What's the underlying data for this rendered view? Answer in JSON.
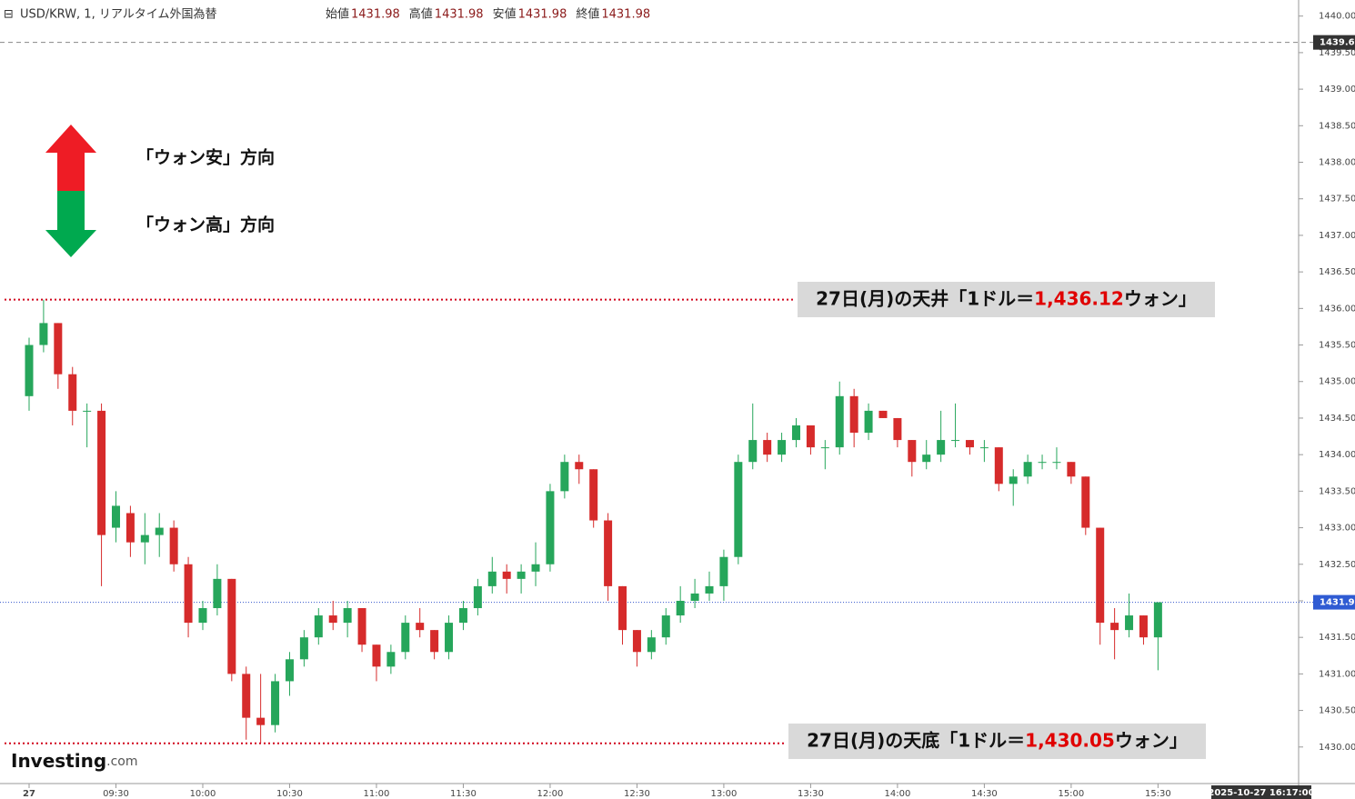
{
  "chart_data": {
    "type": "candlestick",
    "title": "USD/KRW, 1, リアルタイム外国為替",
    "header": [
      {
        "label": "始値",
        "value": 1431.98
      },
      {
        "label": "高値",
        "value": 1431.98
      },
      {
        "label": "安値",
        "value": 1431.98
      },
      {
        "label": "終値",
        "value": 1431.98
      }
    ],
    "x": [
      540,
      545,
      550,
      555,
      560,
      565,
      570,
      575,
      580,
      585,
      590,
      595,
      600,
      605,
      610,
      615,
      620,
      625,
      630,
      635,
      640,
      645,
      650,
      655,
      660,
      665,
      670,
      675,
      680,
      685,
      690,
      695,
      700,
      705,
      710,
      715,
      720,
      725,
      730,
      735,
      740,
      745,
      750,
      755,
      760,
      765,
      770,
      775,
      780,
      785,
      790,
      795,
      800,
      805,
      810,
      815,
      820,
      825,
      830,
      835,
      840,
      845,
      850,
      855,
      860,
      865,
      870,
      875,
      880,
      885,
      890,
      895,
      900,
      905,
      910,
      915,
      920,
      925,
      930
    ],
    "open": [
      1434.8,
      1435.5,
      1435.8,
      1435.1,
      1434.6,
      1434.6,
      1433.0,
      1433.2,
      1432.8,
      1432.9,
      1433.0,
      1432.5,
      1431.7,
      1431.9,
      1432.3,
      1431.0,
      1430.4,
      1430.3,
      1430.9,
      1431.2,
      1431.5,
      1431.8,
      1431.7,
      1431.9,
      1431.4,
      1431.1,
      1431.3,
      1431.7,
      1431.6,
      1431.3,
      1431.7,
      1431.9,
      1432.2,
      1432.4,
      1432.3,
      1432.4,
      1432.5,
      1433.5,
      1433.9,
      1433.8,
      1433.1,
      1432.2,
      1431.6,
      1431.3,
      1431.5,
      1431.8,
      1432.0,
      1432.1,
      1432.2,
      1432.6,
      1433.9,
      1434.2,
      1434.0,
      1434.2,
      1434.4,
      1434.1,
      1434.1,
      1434.8,
      1434.3,
      1434.6,
      1434.5,
      1434.2,
      1433.9,
      1434.0,
      1434.2,
      1434.2,
      1434.1,
      1434.1,
      1433.6,
      1433.7,
      1433.9,
      1433.9,
      1433.9,
      1433.7,
      1433.0,
      1431.7,
      1431.6,
      1431.8,
      1431.5
    ],
    "high": [
      1435.6,
      1436.12,
      1435.8,
      1435.2,
      1434.7,
      1434.7,
      1433.5,
      1433.3,
      1433.2,
      1433.2,
      1433.1,
      1432.6,
      1432.0,
      1432.5,
      1432.3,
      1431.1,
      1431.0,
      1431.0,
      1431.3,
      1431.6,
      1431.9,
      1432.0,
      1432.0,
      1431.9,
      1431.4,
      1431.4,
      1431.8,
      1431.9,
      1431.6,
      1431.8,
      1432.0,
      1432.3,
      1432.6,
      1432.5,
      1432.5,
      1432.8,
      1433.6,
      1434.0,
      1434.0,
      1433.8,
      1433.2,
      1432.2,
      1431.6,
      1431.6,
      1431.9,
      1432.2,
      1432.3,
      1432.4,
      1432.7,
      1434.0,
      1434.7,
      1434.3,
      1434.3,
      1434.5,
      1434.4,
      1434.2,
      1435.0,
      1434.9,
      1434.7,
      1434.6,
      1434.5,
      1434.2,
      1434.2,
      1434.6,
      1434.7,
      1434.2,
      1434.2,
      1434.1,
      1433.8,
      1434.0,
      1434.0,
      1434.1,
      1433.9,
      1433.7,
      1433.0,
      1431.9,
      1432.1,
      1431.8,
      1431.98
    ],
    "low": [
      1434.6,
      1435.4,
      1434.9,
      1434.4,
      1434.1,
      1432.2,
      1432.8,
      1432.6,
      1432.5,
      1432.6,
      1432.4,
      1431.5,
      1431.6,
      1431.8,
      1430.9,
      1430.1,
      1430.05,
      1430.2,
      1430.7,
      1431.1,
      1431.4,
      1431.6,
      1431.5,
      1431.3,
      1430.9,
      1431.0,
      1431.2,
      1431.5,
      1431.2,
      1431.2,
      1431.6,
      1431.8,
      1432.1,
      1432.1,
      1432.1,
      1432.2,
      1432.4,
      1433.4,
      1433.6,
      1433.0,
      1432.0,
      1431.4,
      1431.1,
      1431.2,
      1431.4,
      1431.7,
      1431.9,
      1432.0,
      1432.0,
      1432.5,
      1433.8,
      1433.9,
      1433.9,
      1434.1,
      1434.0,
      1433.8,
      1434.0,
      1434.1,
      1434.2,
      1434.5,
      1434.1,
      1433.7,
      1433.8,
      1433.9,
      1434.1,
      1434.0,
      1433.9,
      1433.5,
      1433.3,
      1433.6,
      1433.8,
      1433.8,
      1433.6,
      1432.9,
      1431.4,
      1431.2,
      1431.5,
      1431.4,
      1431.05
    ],
    "close": [
      1435.5,
      1435.8,
      1435.1,
      1434.6,
      1434.6,
      1432.9,
      1433.3,
      1432.8,
      1432.9,
      1433.0,
      1432.5,
      1431.7,
      1431.9,
      1432.3,
      1431.0,
      1430.4,
      1430.3,
      1430.9,
      1431.2,
      1431.5,
      1431.8,
      1431.7,
      1431.9,
      1431.4,
      1431.1,
      1431.3,
      1431.7,
      1431.6,
      1431.3,
      1431.7,
      1431.9,
      1432.2,
      1432.4,
      1432.3,
      1432.4,
      1432.5,
      1433.5,
      1433.9,
      1433.8,
      1433.1,
      1432.2,
      1431.6,
      1431.3,
      1431.5,
      1431.8,
      1432.0,
      1432.1,
      1432.2,
      1432.6,
      1433.9,
      1434.2,
      1434.0,
      1434.2,
      1434.4,
      1434.1,
      1434.1,
      1434.8,
      1434.3,
      1434.6,
      1434.5,
      1434.2,
      1433.9,
      1434.0,
      1434.2,
      1434.2,
      1434.1,
      1434.1,
      1433.6,
      1433.7,
      1433.9,
      1433.9,
      1433.9,
      1433.7,
      1433.0,
      1431.7,
      1431.6,
      1431.8,
      1431.5,
      1431.98
    ],
    "up_color": "#26a65b",
    "down_color": "#d62b2b",
    "xlim": [
      530,
      962
    ],
    "xticks": [
      {
        "value": 540,
        "label": "27"
      },
      {
        "value": 570,
        "label": "09:30"
      },
      {
        "value": 600,
        "label": "10:00"
      },
      {
        "value": 630,
        "label": "10:30"
      },
      {
        "value": 660,
        "label": "11:00"
      },
      {
        "value": 690,
        "label": "11:30"
      },
      {
        "value": 720,
        "label": "12:00"
      },
      {
        "value": 750,
        "label": "12:30"
      },
      {
        "value": 780,
        "label": "13:00"
      },
      {
        "value": 810,
        "label": "13:30"
      },
      {
        "value": 840,
        "label": "14:00"
      },
      {
        "value": 870,
        "label": "14:30"
      },
      {
        "value": 900,
        "label": "15:00"
      },
      {
        "value": 930,
        "label": "15:30"
      }
    ],
    "ylim": [
      1429.5,
      1440.22
    ],
    "yticks": [
      {
        "value": 1430,
        "label": "1430.00"
      },
      {
        "value": 1430.5,
        "label": "1430.50"
      },
      {
        "value": 1431,
        "label": "1431.00"
      },
      {
        "value": 1431.5,
        "label": "1431.50"
      },
      {
        "value": 1432,
        "label": "1432.00"
      },
      {
        "value": 1432.5,
        "label": "1432.50"
      },
      {
        "value": 1433,
        "label": "1433.00"
      },
      {
        "value": 1433.5,
        "label": "1433.50"
      },
      {
        "value": 1434,
        "label": "1434.00"
      },
      {
        "value": 1434.5,
        "label": "1434.50"
      },
      {
        "value": 1435,
        "label": "1435.00"
      },
      {
        "value": 1435.5,
        "label": "1435.50"
      },
      {
        "value": 1436,
        "label": "1436.00"
      },
      {
        "value": 1436.5,
        "label": "1436.50"
      },
      {
        "value": 1437,
        "label": "1437.00"
      },
      {
        "value": 1437.5,
        "label": "1437.50"
      },
      {
        "value": 1438,
        "label": "1438.00"
      },
      {
        "value": 1438.5,
        "label": "1438.50"
      },
      {
        "value": 1439,
        "label": "1439.00"
      },
      {
        "value": 1439.5,
        "label": "1439.50"
      },
      {
        "value": 1440,
        "label": "1440.00"
      }
    ],
    "last_price": 1431.98,
    "crosshair": 1439.64,
    "timestamp": "2025-10-27 16:17:00",
    "legend": {
      "up": "「ウォン安」方向",
      "down": "「ウォン高」方向"
    },
    "annotations": [
      {
        "before": "27日(月)の天井「1ドル＝",
        "value": 1436.12,
        "value_label": "1,436.12",
        "after": "ウォン」"
      },
      {
        "before": "27日(月)の天底「1ドル＝",
        "value": 1430.05,
        "value_label": "1,430.05",
        "after": "ウォン」"
      }
    ],
    "logo": {
      "name": "Investing",
      "suffix": ".com"
    }
  }
}
